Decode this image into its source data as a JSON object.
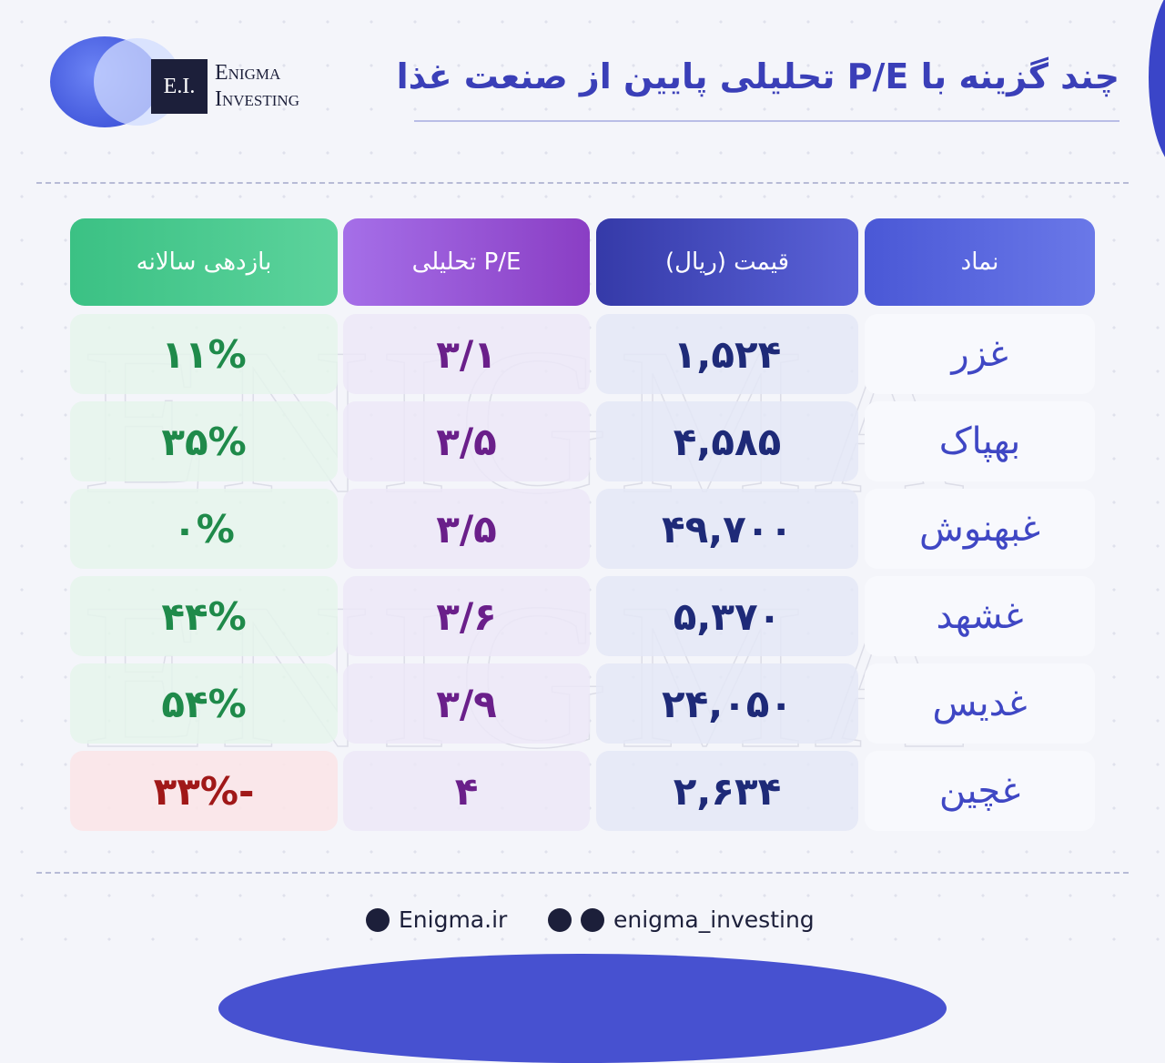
{
  "header": {
    "logo_mark": "E.I.",
    "logo_line1": "Enigma",
    "logo_line2": "Investing",
    "title": "چند گزینه با P/E تحلیلی پایین از صنعت غذا"
  },
  "watermark": "ENIGMA",
  "table": {
    "columns": [
      "نماد",
      "قیمت (ریال)",
      "P/E تحلیلی",
      "بازدهی سالانه"
    ],
    "rows": [
      [
        "غزر",
        "۱,۵۲۴",
        "۳/۱",
        "۱۱%"
      ],
      [
        "بهپاک",
        "۴,۵۸۵",
        "۳/۵",
        "۳۵%"
      ],
      [
        "غبهنوش",
        "۴۹,۷۰۰",
        "۳/۵",
        "۰%"
      ],
      [
        "غشهد",
        "۵,۳۷۰",
        "۳/۶",
        "۴۴%"
      ],
      [
        "غدیس",
        "۲۴,۰۵۰",
        "۳/۹",
        "۵۴%"
      ],
      [
        "غچین",
        "۲,۶۳۴",
        "۴",
        "-۳۳%"
      ]
    ]
  },
  "footer": {
    "website": "Enigma.ir",
    "social": "enigma_investing"
  }
}
